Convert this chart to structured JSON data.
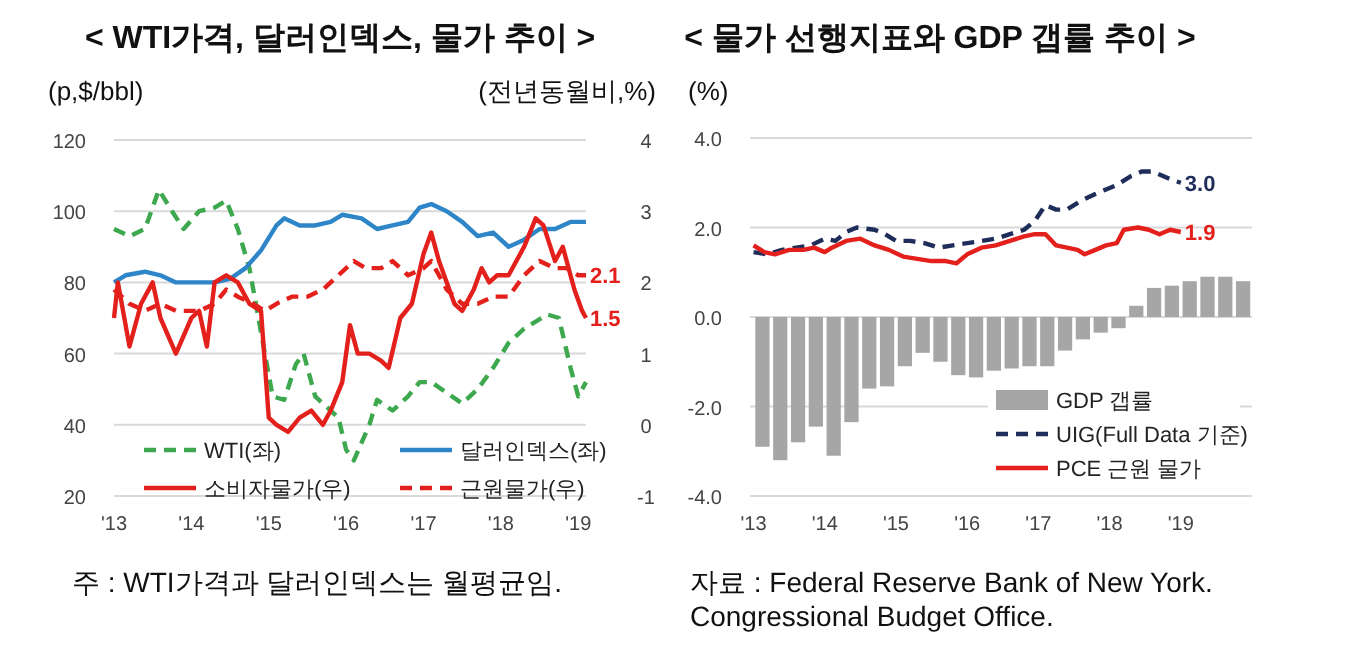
{
  "chart_data": [
    {
      "type": "line",
      "title": "< WTI가격, 달러인덱스, 물가 추이 >",
      "ylabel": "(p,$/bbl)",
      "y2label": "(전년동월비,%)",
      "xlim": [
        2013,
        2019.1
      ],
      "xticks": [
        {
          "value": 2013,
          "label": "'13"
        },
        {
          "value": 2014,
          "label": "'14"
        },
        {
          "value": 2015,
          "label": "'15"
        },
        {
          "value": 2016,
          "label": "'16"
        },
        {
          "value": 2017,
          "label": "'17"
        },
        {
          "value": 2018,
          "label": "'18"
        },
        {
          "value": 2019,
          "label": "'19"
        }
      ],
      "ylim": [
        20,
        120
      ],
      "yticks": [
        20,
        40,
        60,
        80,
        100,
        120
      ],
      "y2lim": [
        -1,
        4
      ],
      "y2ticks": [
        -1,
        0,
        1,
        2,
        3,
        4
      ],
      "grid": "y",
      "legend": "bottom",
      "series": [
        {
          "name": "WTI(좌)",
          "color": "#3ea84f",
          "line_style": "dashed",
          "x": [
            2013.0,
            2013.2,
            2013.4,
            2013.58,
            2013.75,
            2013.9,
            2014.1,
            2014.3,
            2014.45,
            2014.6,
            2014.75,
            2014.9,
            2015.05,
            2015.2,
            2015.35,
            2015.45,
            2015.6,
            2015.75,
            2015.9,
            2016.0,
            2016.1,
            2016.3,
            2016.4,
            2016.6,
            2016.8,
            2016.95,
            2017.1,
            2017.3,
            2017.5,
            2017.7,
            2017.9,
            2018.1,
            2018.3,
            2018.45,
            2018.6,
            2018.75,
            2018.9,
            2019.0,
            2019.1
          ],
          "values": [
            95,
            93,
            95,
            106,
            100,
            95,
            100,
            101,
            103,
            95,
            84,
            66,
            48,
            47,
            57,
            60,
            48,
            45,
            42,
            33,
            30,
            40,
            47,
            44,
            48,
            52,
            52,
            49,
            46,
            50,
            56,
            63,
            67,
            69,
            71,
            70,
            56,
            48,
            52
          ]
        },
        {
          "name": "달러인덱스(좌)",
          "color": "#2e86c8",
          "line_style": "solid",
          "x": [
            2013.0,
            2013.15,
            2013.4,
            2013.6,
            2013.8,
            2014.0,
            2014.3,
            2014.5,
            2014.7,
            2014.9,
            2015.1,
            2015.2,
            2015.4,
            2015.6,
            2015.8,
            2015.95,
            2016.2,
            2016.4,
            2016.6,
            2016.8,
            2016.95,
            2017.1,
            2017.3,
            2017.5,
            2017.7,
            2017.9,
            2018.1,
            2018.3,
            2018.5,
            2018.7,
            2018.9,
            2019.1
          ],
          "values": [
            80,
            82,
            83,
            82,
            80,
            80,
            80,
            81,
            84,
            89,
            96,
            98,
            96,
            96,
            97,
            99,
            98,
            95,
            96,
            97,
            101,
            102,
            100,
            97,
            93,
            94,
            90,
            92,
            95,
            95,
            97,
            97
          ]
        },
        {
          "name": "소비자물가(우)",
          "color": "#e3201b",
          "line_style": "solid",
          "axis": "y2",
          "x": [
            2013.0,
            2013.05,
            2013.2,
            2013.35,
            2013.5,
            2013.6,
            2013.8,
            2014.0,
            2014.1,
            2014.2,
            2014.3,
            2014.45,
            2014.6,
            2014.75,
            2014.9,
            2015.0,
            2015.1,
            2015.25,
            2015.4,
            2015.55,
            2015.7,
            2015.8,
            2015.95,
            2016.05,
            2016.15,
            2016.3,
            2016.45,
            2016.55,
            2016.7,
            2016.85,
            2017.0,
            2017.1,
            2017.2,
            2017.4,
            2017.5,
            2017.65,
            2017.75,
            2017.85,
            2017.95,
            2018.1,
            2018.3,
            2018.45,
            2018.55,
            2018.7,
            2018.8,
            2018.95,
            2019.05,
            2019.1
          ],
          "values": [
            1.5,
            2.0,
            1.1,
            1.7,
            2.0,
            1.5,
            1.0,
            1.5,
            1.6,
            1.1,
            2.0,
            2.1,
            2.0,
            1.7,
            1.6,
            0.1,
            0.0,
            -0.1,
            0.1,
            0.2,
            0.0,
            0.2,
            0.6,
            1.4,
            1.0,
            1.0,
            0.9,
            0.8,
            1.5,
            1.7,
            2.4,
            2.7,
            2.3,
            1.7,
            1.6,
            1.9,
            2.2,
            2.0,
            2.1,
            2.1,
            2.5,
            2.9,
            2.8,
            2.3,
            2.5,
            1.9,
            1.6,
            1.5
          ],
          "value_labels": [
            null,
            null,
            null,
            null,
            null,
            null,
            null,
            null,
            null,
            null,
            null,
            null,
            null,
            null,
            null,
            null,
            null,
            null,
            null,
            null,
            null,
            null,
            null,
            null,
            null,
            null,
            null,
            null,
            null,
            null,
            null,
            null,
            null,
            null,
            null,
            null,
            null,
            null,
            null,
            null,
            null,
            null,
            null,
            null,
            null,
            null,
            null,
            "1.5"
          ]
        },
        {
          "name": "근원물가(우)",
          "color": "#e3201b",
          "line_style": "dashed",
          "axis": "y2",
          "x": [
            2013.0,
            2013.2,
            2013.4,
            2013.6,
            2013.8,
            2014.1,
            2014.3,
            2014.45,
            2014.6,
            2014.8,
            2014.95,
            2015.1,
            2015.3,
            2015.5,
            2015.7,
            2015.9,
            2016.1,
            2016.25,
            2016.45,
            2016.6,
            2016.8,
            2017.0,
            2017.1,
            2017.3,
            2017.5,
            2017.7,
            2017.9,
            2018.1,
            2018.3,
            2018.5,
            2018.7,
            2018.85,
            2019.0,
            2019.1
          ],
          "values": [
            1.9,
            1.7,
            1.6,
            1.7,
            1.6,
            1.6,
            1.7,
            1.9,
            1.8,
            1.7,
            1.6,
            1.7,
            1.8,
            1.8,
            1.9,
            2.1,
            2.3,
            2.2,
            2.2,
            2.3,
            2.1,
            2.2,
            2.3,
            1.9,
            1.7,
            1.7,
            1.8,
            1.8,
            2.1,
            2.3,
            2.2,
            2.2,
            2.1,
            2.1
          ],
          "value_labels": [
            null,
            null,
            null,
            null,
            null,
            null,
            null,
            null,
            null,
            null,
            null,
            null,
            null,
            null,
            null,
            null,
            null,
            null,
            null,
            null,
            null,
            null,
            null,
            null,
            null,
            null,
            null,
            null,
            null,
            null,
            null,
            null,
            null,
            "2.1"
          ]
        }
      ],
      "annotations": [
        "주 : WTI가격과 달러인덱스는 월평균임."
      ]
    },
    {
      "type": "line",
      "title": "< 물가 선행지표와 GDP 갭률 추이 >",
      "ylabel": "(%)",
      "xlim": [
        2012.95,
        2020
      ],
      "xticks": [
        {
          "value": 2013,
          "label": "'13"
        },
        {
          "value": 2014,
          "label": "'14"
        },
        {
          "value": 2015,
          "label": "'15"
        },
        {
          "value": 2016,
          "label": "'16"
        },
        {
          "value": 2017,
          "label": "'17"
        },
        {
          "value": 2018,
          "label": "'18"
        },
        {
          "value": 2019,
          "label": "'19"
        }
      ],
      "ylim": [
        -4,
        4
      ],
      "yticks": [
        {
          "value": -4,
          "label": "-4.0"
        },
        {
          "value": -2,
          "label": "-2.0"
        },
        {
          "value": 0,
          "label": "0.0"
        },
        {
          "value": 2,
          "label": "2.0"
        },
        {
          "value": 4,
          "label": "4.0"
        }
      ],
      "grid": "y",
      "legend": "bottom right",
      "series": [
        {
          "name": "GDP 갭률",
          "type": "bar",
          "color": "#a6a6a6",
          "x": [
            2013.125,
            2013.375,
            2013.625,
            2013.875,
            2014.125,
            2014.375,
            2014.625,
            2014.875,
            2015.125,
            2015.375,
            2015.625,
            2015.875,
            2016.125,
            2016.375,
            2016.625,
            2016.875,
            2017.125,
            2017.375,
            2017.625,
            2017.875,
            2018.125,
            2018.375,
            2018.625,
            2018.875,
            2019.125,
            2019.375,
            2019.625,
            2019.875
          ],
          "values": [
            -2.9,
            -3.2,
            -2.8,
            -2.45,
            -3.1,
            -2.35,
            -1.6,
            -1.55,
            -1.1,
            -0.8,
            -1.0,
            -1.3,
            -1.35,
            -1.2,
            -1.15,
            -1.1,
            -1.1,
            -0.75,
            -0.5,
            -0.35,
            -0.25,
            0.25,
            0.65,
            0.7,
            0.8,
            0.9,
            0.9,
            0.8
          ]
        },
        {
          "name": "UIG(Full Data 기준)",
          "color": "#1f2d5a",
          "line_style": "dashed",
          "x": [
            2013.0,
            2013.2,
            2013.4,
            2013.6,
            2013.8,
            2014.0,
            2014.15,
            2014.3,
            2014.45,
            2014.7,
            2014.85,
            2015.0,
            2015.2,
            2015.4,
            2015.6,
            2015.8,
            2016.0,
            2016.2,
            2016.4,
            2016.6,
            2016.8,
            2016.95,
            2017.1,
            2017.25,
            2017.4,
            2017.6,
            2017.8,
            2017.95,
            2018.1,
            2018.3,
            2018.45,
            2018.6,
            2018.75,
            2018.9,
            2019.0
          ],
          "values": [
            1.45,
            1.4,
            1.5,
            1.55,
            1.6,
            1.75,
            1.7,
            1.9,
            2.0,
            1.95,
            1.85,
            1.7,
            1.7,
            1.65,
            1.55,
            1.6,
            1.65,
            1.7,
            1.75,
            1.85,
            1.95,
            2.15,
            2.5,
            2.4,
            2.4,
            2.6,
            2.75,
            2.85,
            2.95,
            3.15,
            3.25,
            3.25,
            3.15,
            3.05,
            3.0
          ],
          "value_labels": [
            null,
            null,
            null,
            null,
            null,
            null,
            null,
            null,
            null,
            null,
            null,
            null,
            null,
            null,
            null,
            null,
            null,
            null,
            null,
            null,
            null,
            null,
            null,
            null,
            null,
            null,
            null,
            null,
            null,
            null,
            null,
            null,
            null,
            null,
            "3.0"
          ]
        },
        {
          "name": "PCE 근원 물가",
          "color": "#e3201b",
          "line_style": "solid",
          "x": [
            2013.0,
            2013.15,
            2013.3,
            2013.5,
            2013.7,
            2013.85,
            2014.0,
            2014.1,
            2014.3,
            2014.5,
            2014.7,
            2014.9,
            2015.1,
            2015.3,
            2015.5,
            2015.7,
            2015.85,
            2016.0,
            2016.2,
            2016.4,
            2016.6,
            2016.8,
            2016.95,
            2017.1,
            2017.25,
            2017.4,
            2017.55,
            2017.65,
            2017.8,
            2017.95,
            2018.1,
            2018.2,
            2018.4,
            2018.55,
            2018.7,
            2018.85,
            2019.0
          ],
          "values": [
            1.6,
            1.45,
            1.4,
            1.5,
            1.5,
            1.55,
            1.45,
            1.55,
            1.7,
            1.75,
            1.6,
            1.5,
            1.35,
            1.3,
            1.25,
            1.25,
            1.2,
            1.4,
            1.55,
            1.6,
            1.7,
            1.8,
            1.85,
            1.85,
            1.6,
            1.55,
            1.5,
            1.4,
            1.5,
            1.6,
            1.65,
            1.95,
            2.0,
            1.95,
            1.85,
            1.95,
            1.9
          ],
          "value_labels": [
            null,
            null,
            null,
            null,
            null,
            null,
            null,
            null,
            null,
            null,
            null,
            null,
            null,
            null,
            null,
            null,
            null,
            null,
            null,
            null,
            null,
            null,
            null,
            null,
            null,
            null,
            null,
            null,
            null,
            null,
            null,
            null,
            null,
            null,
            null,
            null,
            "1.9"
          ]
        }
      ],
      "annotations": [
        "자료 : Federal Reserve Bank of New York.",
        "Congressional Budget Office."
      ]
    }
  ]
}
